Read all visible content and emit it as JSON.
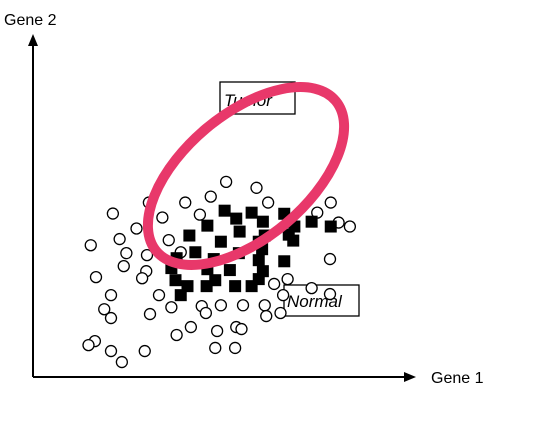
{
  "chart_data": {
    "type": "scatter",
    "title": "",
    "xlabel": "Gene 1",
    "ylabel": "Gene 2",
    "xlim": [
      0,
      100
    ],
    "ylim": [
      0,
      100
    ],
    "grid": false,
    "legend": "none",
    "colors": {
      "axis": "#000000",
      "normal_marker_stroke": "#000000",
      "tumor_marker_fill": "#000000",
      "ellipse": "#e8386a"
    },
    "series": [
      {
        "marker": "open-circle",
        "points": [
          [
            51.5,
            88.7
          ],
          [
            59.6,
            86.0
          ],
          [
            47.4,
            82.0
          ],
          [
            30.9,
            79.3
          ],
          [
            40.6,
            79.3
          ],
          [
            62.7,
            79.3
          ],
          [
            79.4,
            79.3
          ],
          [
            21.3,
            74.3
          ],
          [
            34.5,
            72.5
          ],
          [
            44.5,
            73.8
          ],
          [
            75.8,
            74.7
          ],
          [
            81.5,
            70.2
          ],
          [
            27.6,
            67.5
          ],
          [
            84.5,
            68.4
          ],
          [
            23.1,
            62.7
          ],
          [
            36.2,
            62.2
          ],
          [
            15.4,
            59.9
          ],
          [
            24.9,
            56.3
          ],
          [
            30.4,
            55.4
          ],
          [
            39.4,
            56.7
          ],
          [
            24.2,
            50.4
          ],
          [
            30.2,
            48.1
          ],
          [
            79.2,
            53.6
          ],
          [
            16.8,
            45.4
          ],
          [
            29.1,
            44.9
          ],
          [
            67.9,
            44.5
          ],
          [
            74.3,
            40.4
          ],
          [
            20.8,
            37.2
          ],
          [
            33.6,
            37.2
          ],
          [
            64.3,
            42.3
          ],
          [
            79.2,
            37.7
          ],
          [
            66.7,
            37.2
          ],
          [
            19.0,
            30.8
          ],
          [
            36.9,
            31.7
          ],
          [
            45.0,
            32.2
          ],
          [
            50.1,
            32.6
          ],
          [
            56.0,
            32.6
          ],
          [
            61.8,
            32.6
          ],
          [
            31.2,
            28.6
          ],
          [
            46.1,
            29.1
          ],
          [
            66.0,
            29.1
          ],
          [
            62.2,
            27.7
          ],
          [
            20.8,
            26.8
          ],
          [
            42.1,
            22.7
          ],
          [
            54.2,
            22.7
          ],
          [
            49.1,
            20.9
          ],
          [
            16.5,
            16.3
          ],
          [
            38.3,
            19.1
          ],
          [
            55.6,
            21.8
          ],
          [
            14.8,
            14.5
          ],
          [
            20.8,
            11.8
          ],
          [
            29.8,
            11.8
          ],
          [
            48.6,
            13.2
          ],
          [
            53.9,
            13.2
          ],
          [
            23.7,
            6.8
          ]
        ]
      },
      {
        "marker": "filled-square",
        "points": [
          [
            51.1,
            75.6
          ],
          [
            58.3,
            74.7
          ],
          [
            67.0,
            74.2
          ],
          [
            74.3,
            70.6
          ],
          [
            54.2,
            72.0
          ],
          [
            61.3,
            70.6
          ],
          [
            69.7,
            68.4
          ],
          [
            79.4,
            68.4
          ],
          [
            46.5,
            68.8
          ],
          [
            55.1,
            66.1
          ],
          [
            61.8,
            64.3
          ],
          [
            68.2,
            64.7
          ],
          [
            41.7,
            64.3
          ],
          [
            50.1,
            61.5
          ],
          [
            60.2,
            61.5
          ],
          [
            69.4,
            62.0
          ],
          [
            43.3,
            56.7
          ],
          [
            54.9,
            56.3
          ],
          [
            61.1,
            58.1
          ],
          [
            38.3,
            54.0
          ],
          [
            48.2,
            53.6
          ],
          [
            60.2,
            53.1
          ],
          [
            67.0,
            52.6
          ],
          [
            36.9,
            49.5
          ],
          [
            46.5,
            49.0
          ],
          [
            52.5,
            48.6
          ],
          [
            61.3,
            48.1
          ],
          [
            38.0,
            44.0
          ],
          [
            48.6,
            44.0
          ],
          [
            60.2,
            44.5
          ],
          [
            41.2,
            41.3
          ],
          [
            46.3,
            41.3
          ],
          [
            53.9,
            41.3
          ],
          [
            39.4,
            37.2
          ],
          [
            58.3,
            41.3
          ]
        ]
      }
    ],
    "annotations": [
      {
        "text": "Tumor"
      },
      {
        "text": "Normal"
      }
    ]
  }
}
